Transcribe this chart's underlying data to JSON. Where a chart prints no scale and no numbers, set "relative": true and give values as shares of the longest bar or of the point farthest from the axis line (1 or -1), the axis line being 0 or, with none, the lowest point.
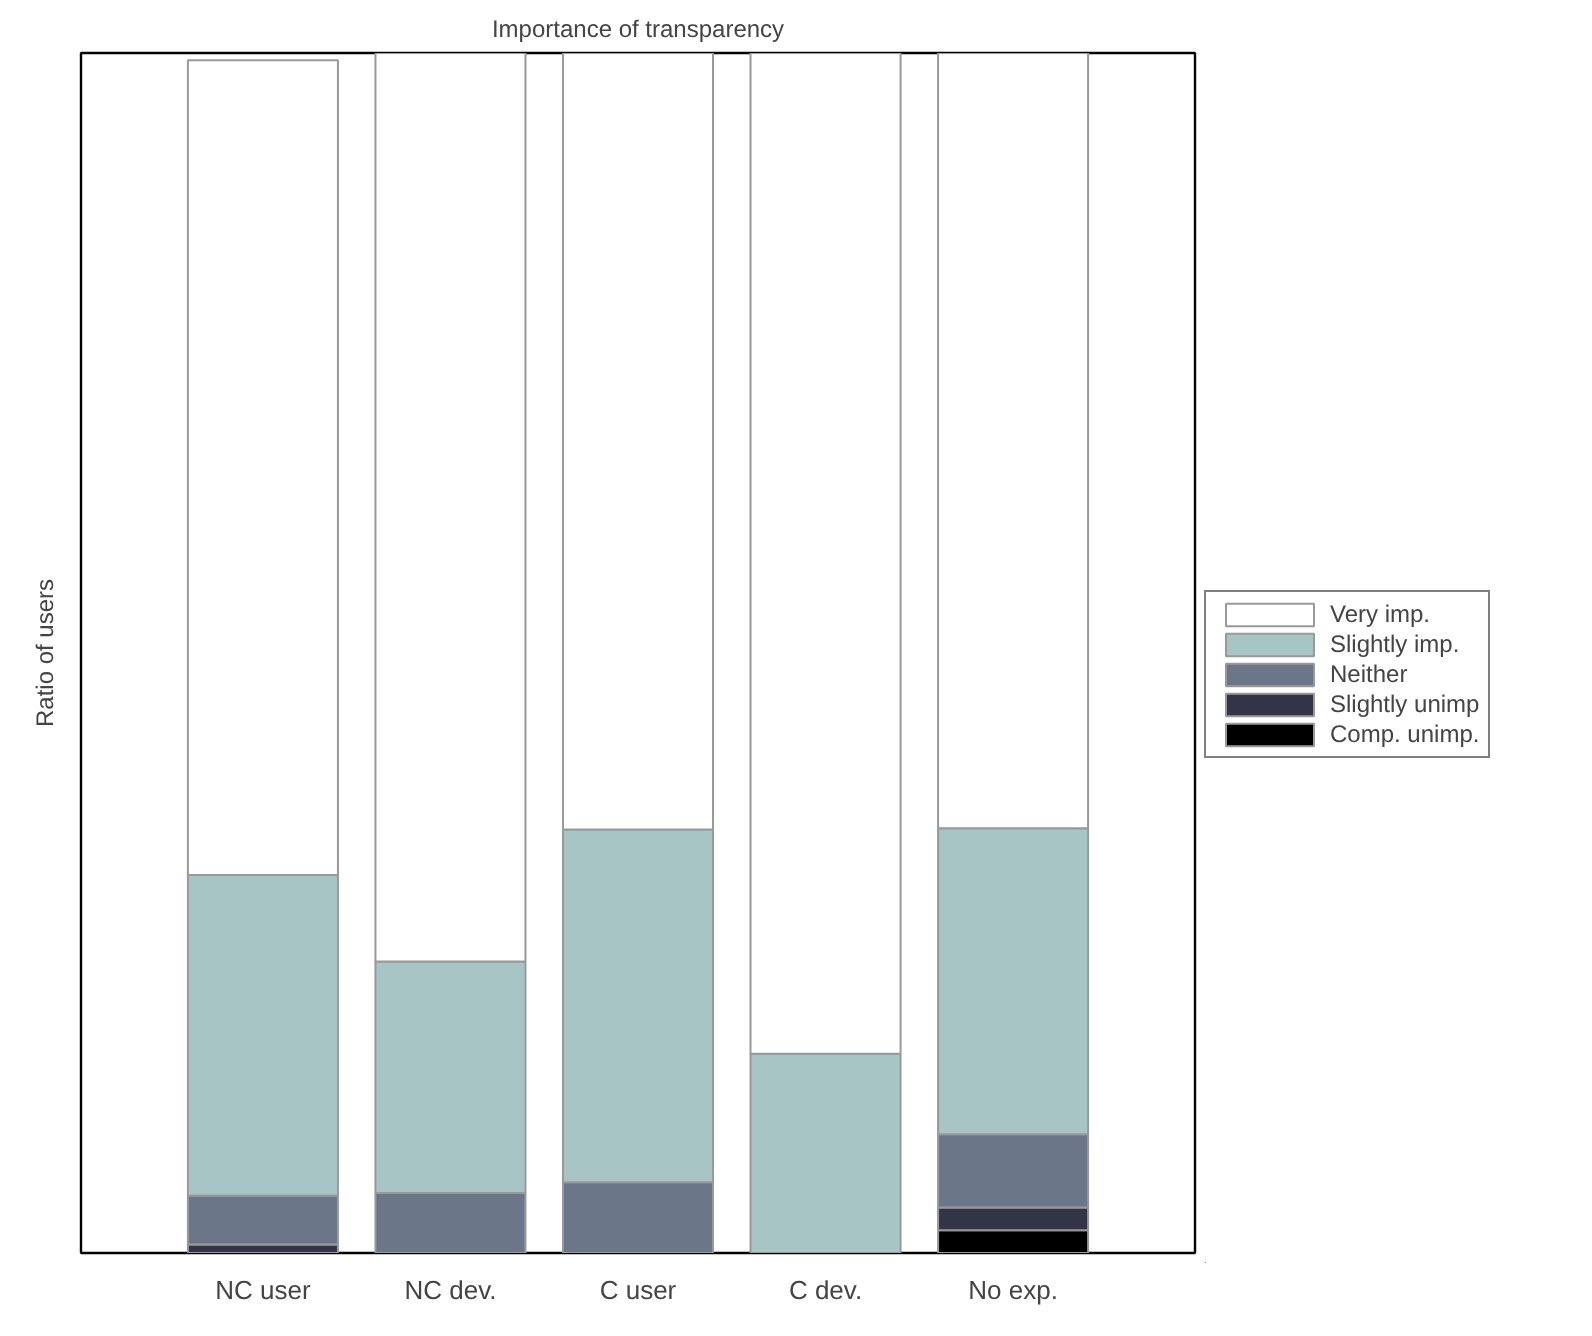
{
  "chart_data": {
    "type": "bar",
    "title": "Importance of transparency",
    "ylabel": "Ratio of users",
    "categories": [
      "NC user",
      "NC dev.",
      "C user",
      "C dev.",
      "No exp."
    ],
    "stacked": true,
    "relative": true,
    "legend": "right",
    "grid": false,
    "series": [
      {
        "name": "Comp. unimp.",
        "color": "#000000",
        "values": [
          0,
          0,
          0,
          0,
          0.019
        ]
      },
      {
        "name": "Slightly unimp",
        "color": "#343449",
        "values": [
          0.007,
          0,
          0,
          0,
          0.019
        ]
      },
      {
        "name": "Neither",
        "color": "#6c7689",
        "values": [
          0.041,
          0.05,
          0.059,
          0,
          0.061
        ]
      },
      {
        "name": "Slightly imp.",
        "color": "#a7c5c5",
        "values": [
          0.267,
          0.193,
          0.294,
          0.166,
          0.255
        ]
      },
      {
        "name": "Very imp.",
        "color": "#ffffff",
        "values": [
          0.679,
          0.757,
          0.647,
          0.834,
          0.646
        ]
      }
    ]
  }
}
